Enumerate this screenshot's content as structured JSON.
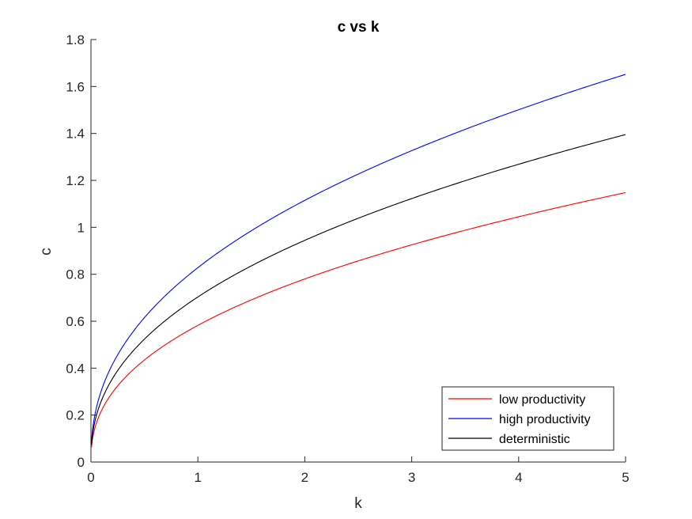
{
  "chart_data": {
    "type": "line",
    "title": "c vs k",
    "xlabel": "k",
    "ylabel": "c",
    "xlim": [
      0,
      5
    ],
    "ylim": [
      0,
      1.8
    ],
    "xticks": [
      0,
      1,
      2,
      3,
      4,
      5
    ],
    "xtick_labels": [
      "0",
      "1",
      "2",
      "3",
      "4",
      "5"
    ],
    "yticks": [
      0,
      0.2,
      0.4,
      0.6,
      0.8,
      1,
      1.2,
      1.4,
      1.6,
      1.8
    ],
    "ytick_labels": [
      "0",
      "0.2",
      "0.4",
      "0.6",
      "0.8",
      "1",
      "1.2",
      "1.4",
      "1.6",
      "1.8"
    ],
    "grid": false,
    "legend_position": "bottom-right",
    "series": [
      {
        "name": "low productivity",
        "color": "#ff0000",
        "x": [
          0.01,
          0.05,
          0.1,
          0.2,
          0.5,
          1,
          1.5,
          2,
          2.5,
          3,
          3.5,
          4,
          4.5,
          5
        ],
        "y": [
          0.08,
          0.17,
          0.23,
          0.3,
          0.43,
          0.57,
          0.68,
          0.77,
          0.85,
          0.92,
          0.99,
          1.05,
          1.11,
          1.16
        ]
      },
      {
        "name": "high productivity",
        "color": "#0000ff",
        "x": [
          0.01,
          0.05,
          0.1,
          0.2,
          0.5,
          1,
          1.5,
          2,
          2.5,
          3,
          3.5,
          4,
          4.5,
          5
        ],
        "y": [
          0.1,
          0.25,
          0.33,
          0.43,
          0.63,
          0.86,
          1.0,
          1.1,
          1.21,
          1.3,
          1.38,
          1.47,
          1.55,
          1.63
        ]
      },
      {
        "name": "deterministic",
        "color": "#000000",
        "x": [
          0.01,
          0.05,
          0.1,
          0.2,
          0.5,
          1,
          1.5,
          2,
          2.5,
          3,
          3.5,
          4,
          4.5,
          5
        ],
        "y": [
          0.09,
          0.21,
          0.28,
          0.37,
          0.52,
          0.7,
          0.82,
          0.93,
          1.03,
          1.11,
          1.19,
          1.27,
          1.33,
          1.4
        ]
      }
    ]
  }
}
